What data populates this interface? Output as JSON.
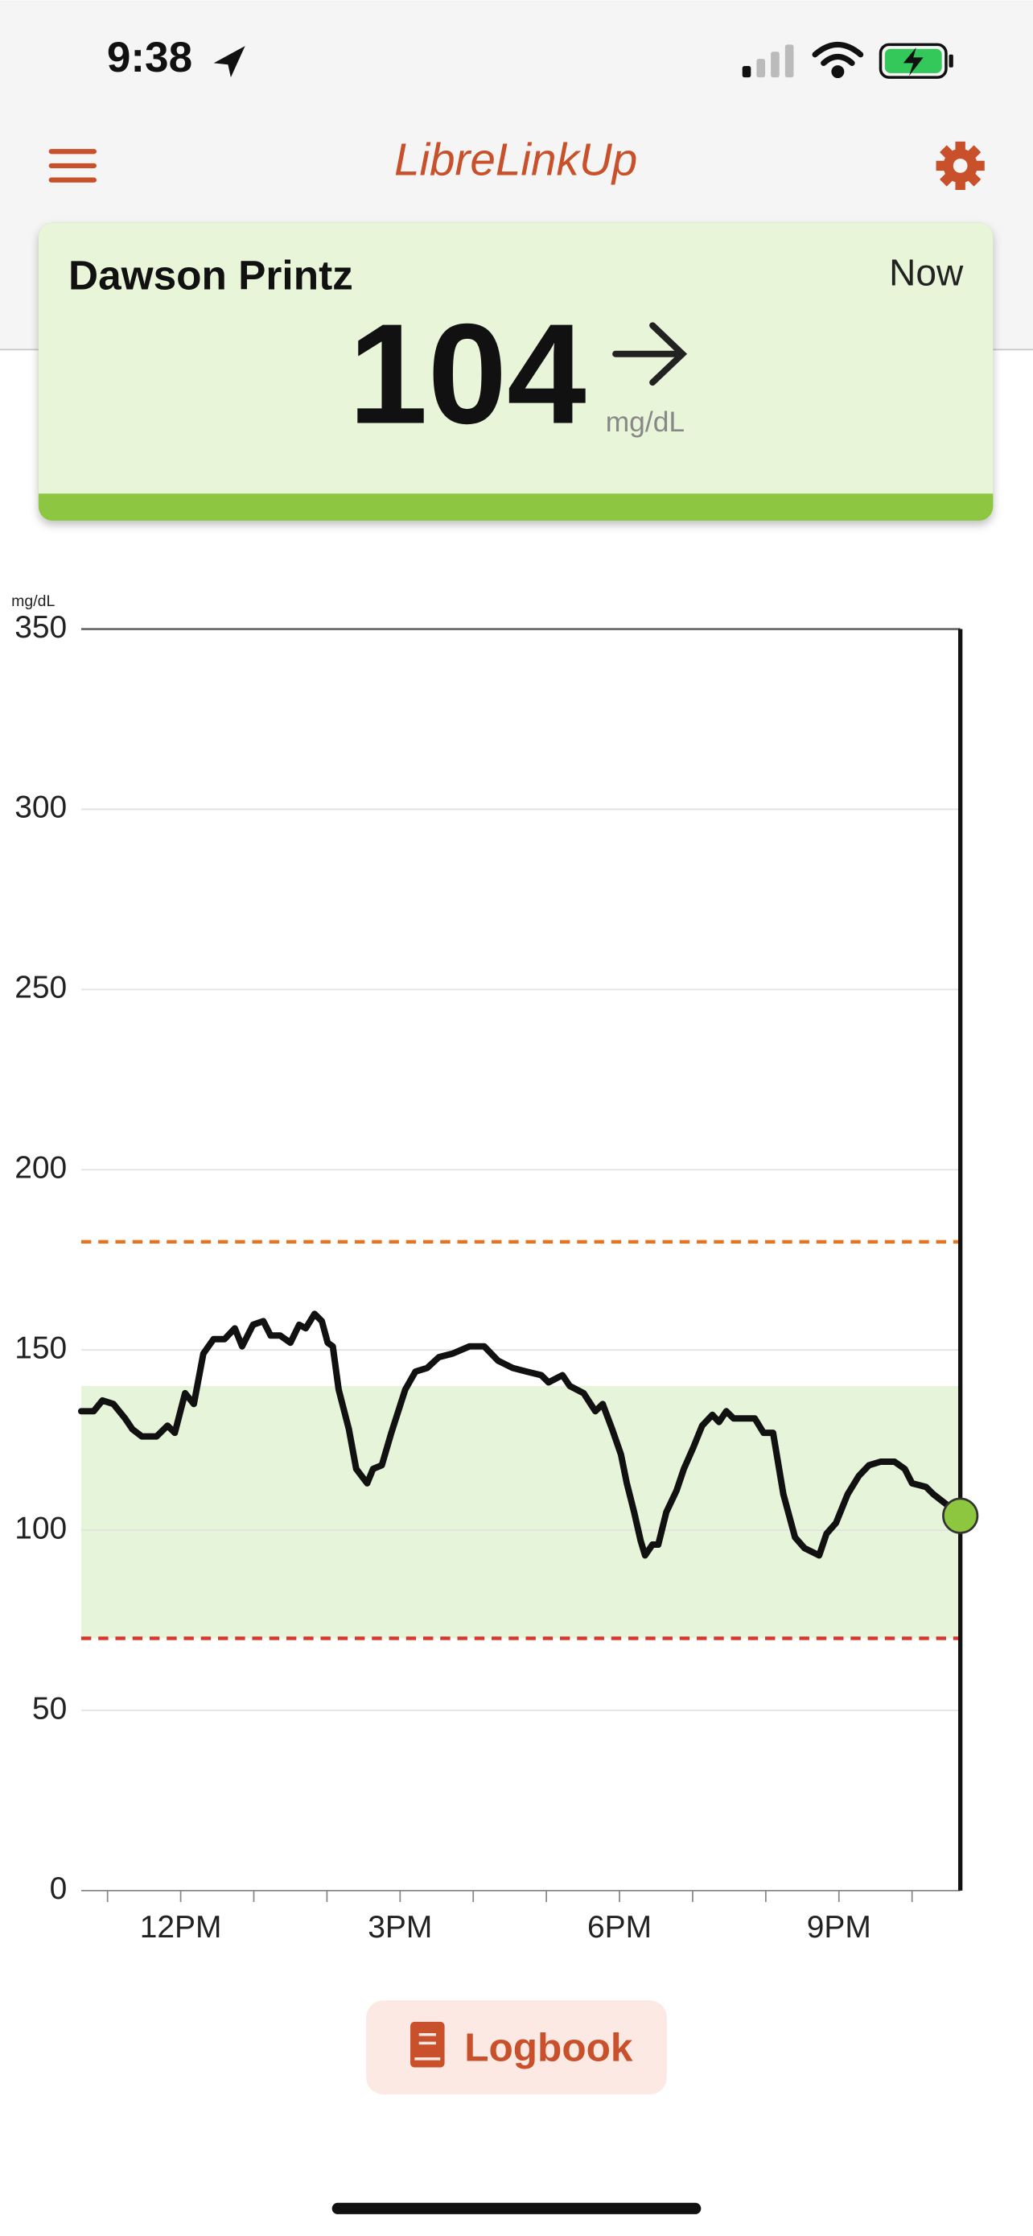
{
  "status_bar": {
    "time": "9:38"
  },
  "header": {
    "title": "LibreLinkUp"
  },
  "card": {
    "name": "Dawson Printz",
    "time": "Now",
    "value": 104,
    "unit": "mg/dL"
  },
  "chart_data": {
    "type": "line",
    "y_label": "mg/dL",
    "color": "#111111",
    "x": [
      10.64,
      10.81,
      10.93,
      11.08,
      11.24,
      11.34,
      11.47,
      11.67,
      11.82,
      11.92,
      12.06,
      12.18,
      12.31,
      12.45,
      12.6,
      12.74,
      12.84,
      12.99,
      13.13,
      13.23,
      13.36,
      13.5,
      13.62,
      13.71,
      13.83,
      13.93,
      14.01,
      14.08,
      14.16,
      14.3,
      14.4,
      14.55,
      14.63,
      14.75,
      14.88,
      15.07,
      15.21,
      15.37,
      15.53,
      15.72,
      15.95,
      16.15,
      16.34,
      16.54,
      16.73,
      16.93,
      17.03,
      17.22,
      17.32,
      17.51,
      17.67,
      17.77,
      17.9,
      18.02,
      18.1,
      18.2,
      18.29,
      18.35,
      18.45,
      18.53,
      18.64,
      18.78,
      18.88,
      19.01,
      19.13,
      19.27,
      19.36,
      19.46,
      19.56,
      19.66,
      19.85,
      19.97,
      20.1,
      20.24,
      20.4,
      20.53,
      20.73,
      20.83,
      20.96,
      21.12,
      21.27,
      21.41,
      21.57,
      21.76,
      21.9,
      22.0,
      22.19,
      22.29,
      22.48,
      22.66
    ],
    "values": [
      133,
      133,
      136,
      135,
      131,
      128,
      126,
      126,
      129,
      127,
      138,
      135,
      149,
      153,
      153,
      156,
      151,
      157,
      158,
      154,
      154,
      152,
      157,
      156,
      160,
      158,
      152,
      151,
      139,
      128,
      117,
      113,
      117,
      118,
      127,
      139,
      144,
      145,
      148,
      149,
      151,
      151,
      147,
      145,
      144,
      143,
      141,
      143,
      140,
      138,
      133,
      135,
      128,
      121,
      113,
      105,
      97,
      93,
      96,
      96,
      105,
      111,
      117,
      123,
      129,
      132,
      130,
      133,
      131,
      131,
      131,
      127,
      127,
      110,
      98,
      95,
      93,
      99,
      102,
      110,
      115,
      118,
      119,
      119,
      117,
      113,
      112,
      110,
      107,
      104
    ],
    "xlim": [
      10.64,
      22.66
    ],
    "ylim": [
      0,
      350
    ],
    "xticks": [
      {
        "value": 12,
        "label": "12PM"
      },
      {
        "value": 15,
        "label": "3PM"
      },
      {
        "value": 18,
        "label": "6PM"
      },
      {
        "value": 21,
        "label": "9PM"
      }
    ],
    "xminor": [
      11,
      13,
      14,
      16,
      17,
      19,
      20,
      22
    ],
    "yticks": [
      0,
      50,
      100,
      150,
      200,
      250,
      300,
      350
    ],
    "grid": true,
    "target_range": [
      70,
      140
    ],
    "target_color": "#e6f4d9",
    "high_line": 180,
    "high_color": "#e8731f",
    "low_line": 70,
    "low_color": "#d9352b",
    "marker_color": "#8dc63f"
  },
  "button": {
    "label": "Logbook"
  }
}
